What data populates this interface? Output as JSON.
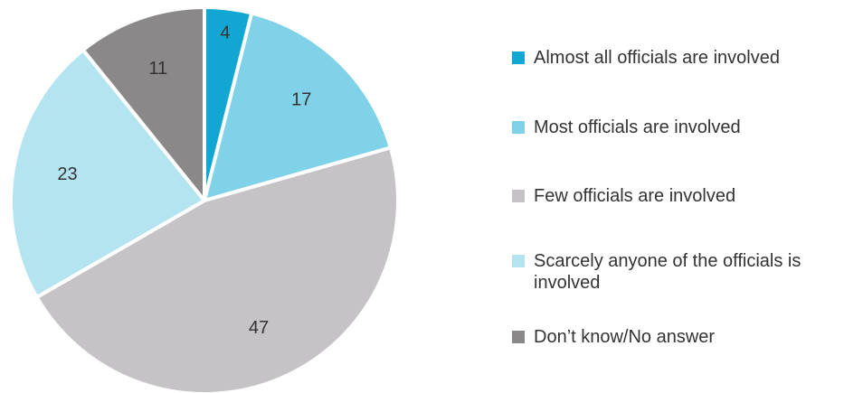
{
  "chart_data": {
    "type": "pie",
    "categories": [
      "Almost all officials are involved",
      "Most officials are involved",
      "Few officials are involved",
      "Scarcely anyone of the officials is involved",
      "Don’t know/No answer"
    ],
    "values": [
      4,
      17,
      47,
      23,
      11
    ],
    "colors": [
      "#12a7d2",
      "#7fd2e7",
      "#c5c3c5",
      "#b3e4f0",
      "#8a8888"
    ],
    "start_angle": 0,
    "direction": "clockwise"
  }
}
